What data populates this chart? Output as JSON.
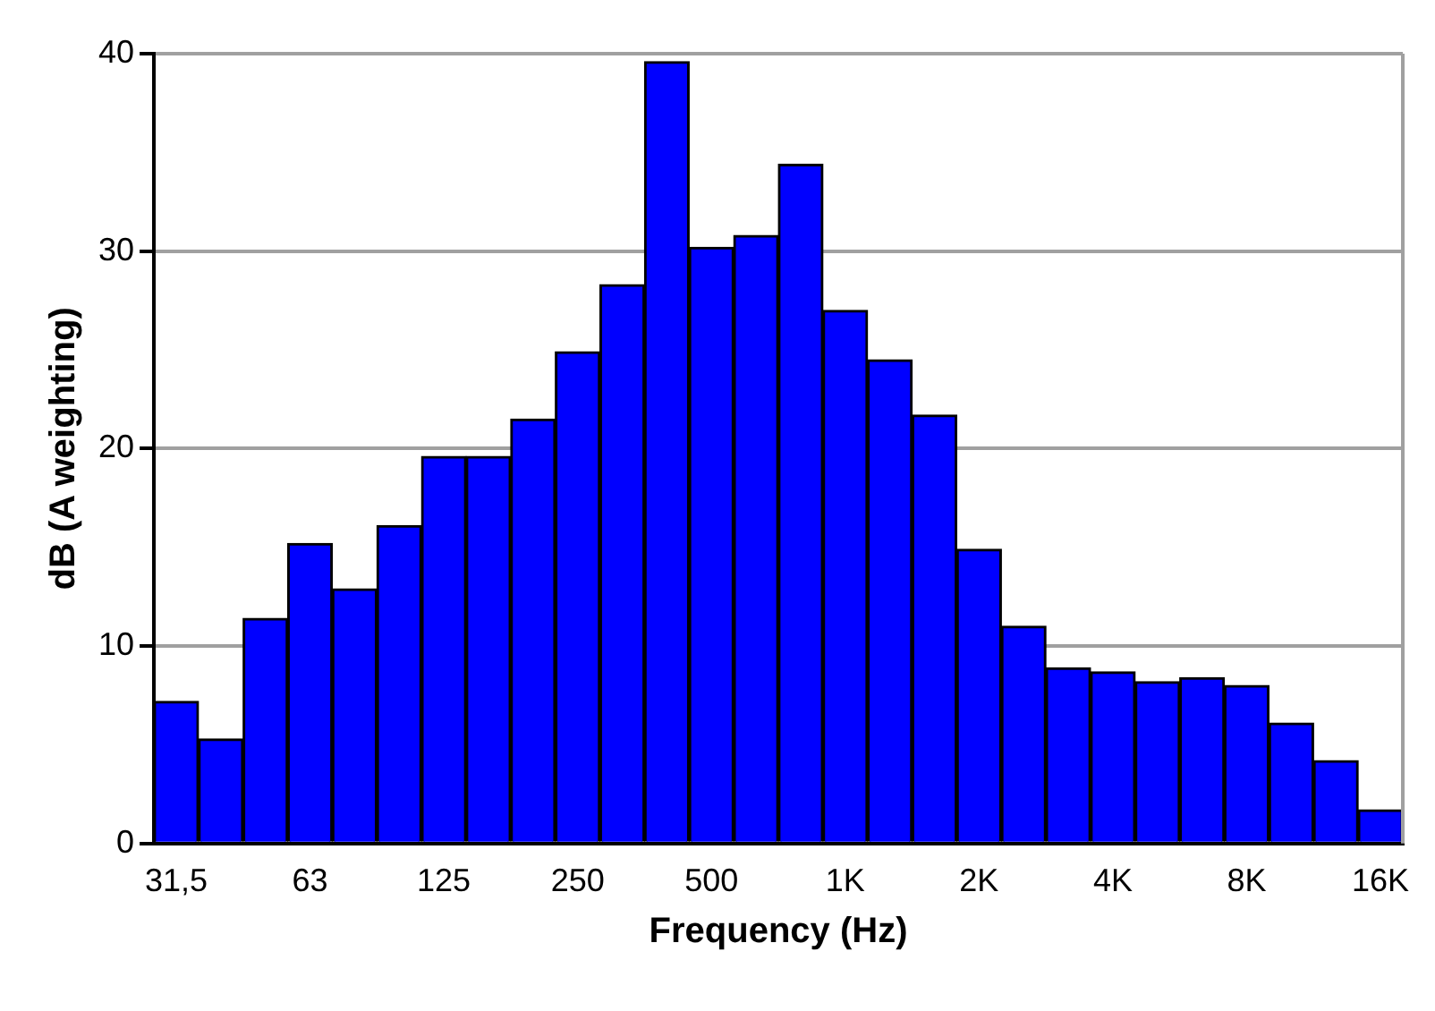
{
  "chart_data": {
    "type": "bar",
    "xlabel": "Frequency (Hz)",
    "ylabel": "dB (A weighting)",
    "categories": [
      "31,5",
      null,
      null,
      "63",
      null,
      null,
      "125",
      null,
      null,
      "250",
      null,
      null,
      "500",
      null,
      null,
      "1K",
      null,
      null,
      "2K",
      null,
      null,
      "4K",
      null,
      null,
      "8K",
      null,
      null,
      "16K"
    ],
    "values": [
      7.2,
      5.3,
      11.4,
      15.2,
      12.9,
      16.1,
      19.6,
      19.6,
      21.5,
      24.9,
      28.3,
      39.6,
      30.2,
      30.8,
      34.4,
      27.0,
      24.5,
      21.7,
      14.9,
      11.0,
      8.9,
      8.7,
      8.2,
      8.4,
      8.0,
      6.1,
      4.2,
      1.7
    ],
    "color": "#0000ff",
    "ylim": [
      0,
      40
    ],
    "yticks": [
      0,
      10,
      20,
      30,
      40
    ],
    "grid": "y",
    "legend": false
  }
}
